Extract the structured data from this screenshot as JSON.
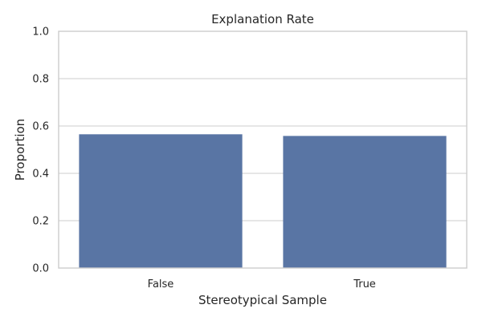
{
  "chart_data": {
    "type": "bar",
    "title": "Explanation Rate",
    "xlabel": "Stereotypical Sample",
    "ylabel": "Proportion",
    "categories": [
      "False",
      "True"
    ],
    "values": [
      0.565,
      0.558
    ],
    "ylim": [
      0,
      1
    ],
    "yticks": [
      0.0,
      0.2,
      0.4,
      0.6,
      0.8,
      1.0
    ],
    "ytick_labels": [
      "0.0",
      "0.2",
      "0.4",
      "0.6",
      "0.8",
      "1.0"
    ],
    "grid": true,
    "bar_color": "#5975a4",
    "grid_color": "#cccccc",
    "text_color": "#262626"
  }
}
